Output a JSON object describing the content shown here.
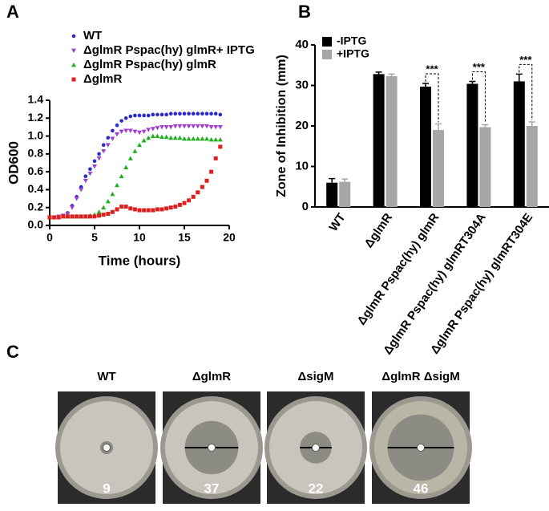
{
  "panel_labels": [
    "A",
    "B",
    "C"
  ],
  "chart_data": [
    {
      "type": "scatter",
      "xlabel": "Time (hours)",
      "ylabel": "OD600",
      "x": [
        0,
        0.5,
        1,
        1.5,
        2,
        2.5,
        3,
        3.5,
        4,
        4.5,
        5,
        5.5,
        6,
        6.5,
        7,
        7.5,
        8,
        8.5,
        9,
        9.5,
        10,
        10.5,
        11,
        11.5,
        12,
        12.5,
        13,
        13.5,
        14,
        14.5,
        15,
        15.5,
        16,
        16.5,
        17,
        17.5,
        18,
        18.5,
        19
      ],
      "xlim": [
        0,
        20
      ],
      "xticks": [
        0,
        5,
        10,
        15,
        20
      ],
      "ylim": [
        0,
        1.4
      ],
      "yticks": [
        {
          "value": 0,
          "label": "0.0"
        },
        0.2,
        0.4,
        0.6,
        0.8,
        {
          "value": 1,
          "label": "1.0"
        },
        1.2,
        1.4
      ],
      "series": [
        {
          "name": "WT",
          "color": "#2a2ad0",
          "marker": "circle",
          "values": [
            0.09,
            0.09,
            0.1,
            0.11,
            0.14,
            0.22,
            0.32,
            0.43,
            0.55,
            0.63,
            0.72,
            0.8,
            0.9,
            0.98,
            1.06,
            1.12,
            1.17,
            1.2,
            1.22,
            1.23,
            1.23,
            1.23,
            1.23,
            1.24,
            1.24,
            1.24,
            1.24,
            1.25,
            1.25,
            1.25,
            1.25,
            1.25,
            1.25,
            1.25,
            1.25,
            1.25,
            1.25,
            1.25,
            1.24
          ]
        },
        {
          "name": "ΔglmR Pspac(hy) glmR+ IPTG",
          "color": "#a040d0",
          "marker": "triangle-down",
          "values": [
            0.09,
            0.09,
            0.1,
            0.11,
            0.13,
            0.2,
            0.3,
            0.4,
            0.5,
            0.58,
            0.66,
            0.75,
            0.83,
            0.9,
            0.97,
            1.02,
            1.05,
            1.06,
            1.06,
            1.05,
            1.04,
            1.05,
            1.07,
            1.08,
            1.09,
            1.1,
            1.1,
            1.1,
            1.11,
            1.11,
            1.11,
            1.11,
            1.11,
            1.11,
            1.11,
            1.11,
            1.1,
            1.1,
            1.1
          ]
        },
        {
          "name": "ΔglmR Pspac(hy) glmR",
          "color": "#1fb01f",
          "marker": "triangle-up",
          "values": [
            0.09,
            0.09,
            0.09,
            0.1,
            0.1,
            0.1,
            0.1,
            0.1,
            0.1,
            0.11,
            0.12,
            0.15,
            0.2,
            0.27,
            0.35,
            0.45,
            0.55,
            0.65,
            0.75,
            0.83,
            0.9,
            0.95,
            0.98,
            1.0,
            1.0,
            0.99,
            0.99,
            0.98,
            0.98,
            0.98,
            0.97,
            0.97,
            0.97,
            0.97,
            0.97,
            0.97,
            0.96,
            0.96,
            0.96
          ]
        },
        {
          "name": "ΔglmR",
          "color": "#e02020",
          "marker": "square",
          "values": [
            0.09,
            0.09,
            0.09,
            0.1,
            0.1,
            0.1,
            0.1,
            0.1,
            0.1,
            0.1,
            0.1,
            0.11,
            0.12,
            0.13,
            0.15,
            0.18,
            0.21,
            0.21,
            0.19,
            0.18,
            0.17,
            0.17,
            0.17,
            0.17,
            0.18,
            0.18,
            0.19,
            0.2,
            0.21,
            0.23,
            0.25,
            0.28,
            0.32,
            0.37,
            0.43,
            0.5,
            0.6,
            0.75,
            0.88
          ]
        }
      ]
    },
    {
      "type": "bar",
      "ylabel": "Zone of Inhibition (mm)",
      "categories": [
        "WT",
        "ΔglmR",
        "ΔglmR Pspac(hy) glmR",
        "ΔglmR Pspac(hy) glmRT304A",
        "ΔglmR Pspac(hy) glmRT304E"
      ],
      "ylim": [
        0,
        40
      ],
      "yticks": [
        0,
        10,
        20,
        30,
        40
      ],
      "series": [
        {
          "name": "-IPTG",
          "color": "#000000",
          "values": [
            6,
            32.8,
            29.7,
            30.4,
            31
          ],
          "errors": [
            1,
            0.5,
            0.8,
            0.6,
            1.8
          ]
        },
        {
          "name": "+IPTG",
          "color": "#a6a6a6",
          "values": [
            6.2,
            32.3,
            19,
            19.7,
            20
          ],
          "errors": [
            0.7,
            0.5,
            1.5,
            0.6,
            1
          ]
        }
      ],
      "significance": [
        null,
        null,
        "***",
        "***",
        "***"
      ]
    }
  ],
  "plates": [
    {
      "label": "WT",
      "value": 9
    },
    {
      "label": "ΔglmR",
      "value": 37
    },
    {
      "label": "ΔsigM",
      "value": 22
    },
    {
      "label": "ΔglmR ΔsigM",
      "value": 46
    }
  ]
}
